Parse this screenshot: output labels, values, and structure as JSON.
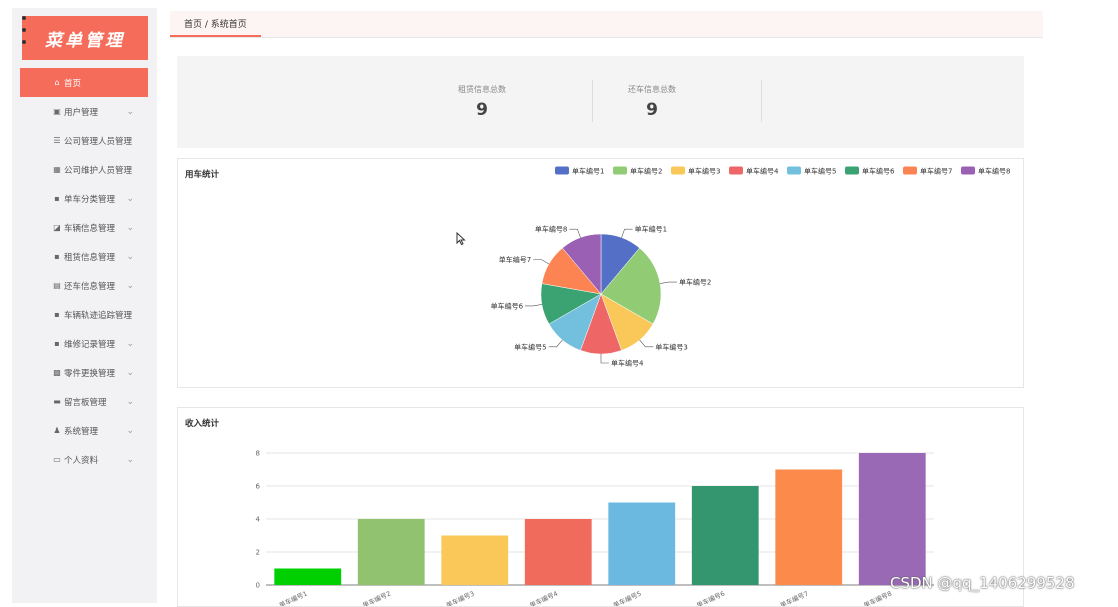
{
  "app": {
    "logo_text": "菜单管理"
  },
  "breadcrumb": {
    "text": "首页 / 系统首页"
  },
  "sidebar": {
    "items": [
      {
        "label": "首页",
        "icon": "home-icon",
        "glyph": "⌂",
        "active": true,
        "expandable": false
      },
      {
        "label": "用户管理",
        "icon": "user-folder-icon",
        "glyph": "▣",
        "active": false,
        "expandable": true
      },
      {
        "label": "公司管理人员管理",
        "icon": "list-icon",
        "glyph": "☰",
        "active": false,
        "expandable": false
      },
      {
        "label": "公司维护人员管理",
        "icon": "grid-icon",
        "glyph": "▦",
        "active": false,
        "expandable": false
      },
      {
        "label": "单车分类管理",
        "icon": "apps-icon",
        "glyph": "▪",
        "active": false,
        "expandable": true
      },
      {
        "label": "车辆信息管理",
        "icon": "car-icon",
        "glyph": "◪",
        "active": false,
        "expandable": true
      },
      {
        "label": "租赁信息管理",
        "icon": "apps-icon",
        "glyph": "▪",
        "active": false,
        "expandable": true
      },
      {
        "label": "还车信息管理",
        "icon": "clipboard-icon",
        "glyph": "▤",
        "active": false,
        "expandable": true
      },
      {
        "label": "车辆轨迹追踪管理",
        "icon": "apps-icon",
        "glyph": "▪",
        "active": false,
        "expandable": false
      },
      {
        "label": "维修记录管理",
        "icon": "apps-icon",
        "glyph": "▪",
        "active": false,
        "expandable": true
      },
      {
        "label": "零件更换管理",
        "icon": "box-icon",
        "glyph": "▩",
        "active": false,
        "expandable": true
      },
      {
        "label": "留言板管理",
        "icon": "inbox-icon",
        "glyph": "▬",
        "active": false,
        "expandable": true
      },
      {
        "label": "系统管理",
        "icon": "person-icon",
        "glyph": "♟",
        "active": false,
        "expandable": true
      },
      {
        "label": "个人资料",
        "icon": "id-card-icon",
        "glyph": "▭",
        "active": false,
        "expandable": true
      }
    ]
  },
  "stats": [
    {
      "label": "租赁信息总数",
      "value": "9"
    },
    {
      "label": "还车信息总数",
      "value": "9"
    }
  ],
  "pie_card": {
    "title": "用车统计"
  },
  "bar_card": {
    "title": "收入统计"
  },
  "watermark": "CSDN @qq_1406299528",
  "chart_data": [
    {
      "type": "pie",
      "title": "用车统计",
      "legend_position": "top-right",
      "slices": [
        {
          "name": "单车编号1",
          "value": 1,
          "color": "#5470c6"
        },
        {
          "name": "单车编号2",
          "value": 2,
          "color": "#91cc75"
        },
        {
          "name": "单车编号3",
          "value": 1,
          "color": "#fac858"
        },
        {
          "name": "单车编号4",
          "value": 1,
          "color": "#ee6666"
        },
        {
          "name": "单车编号5",
          "value": 1,
          "color": "#73c0de"
        },
        {
          "name": "单车编号6",
          "value": 1,
          "color": "#3ba272"
        },
        {
          "name": "单车编号7",
          "value": 1,
          "color": "#fc8452"
        },
        {
          "name": "单车编号8",
          "value": 1,
          "color": "#9a60b4"
        }
      ]
    },
    {
      "type": "bar",
      "title": "收入统计",
      "categories": [
        "单车编号1",
        "单车编号2",
        "单车编号3",
        "单车编号4",
        "单车编号5",
        "单车编号6",
        "单车编号7",
        "单车编号8"
      ],
      "values": [
        1,
        4,
        3,
        4,
        5,
        6,
        7,
        8
      ],
      "colors": [
        "#00d000",
        "#91c26f",
        "#fac858",
        "#f16b5c",
        "#6bb8e0",
        "#33966f",
        "#fc8a4a",
        "#9a69b6"
      ],
      "yticks": [
        0,
        2,
        4,
        6,
        8
      ],
      "ylim": [
        0,
        8
      ],
      "grid": true
    }
  ]
}
